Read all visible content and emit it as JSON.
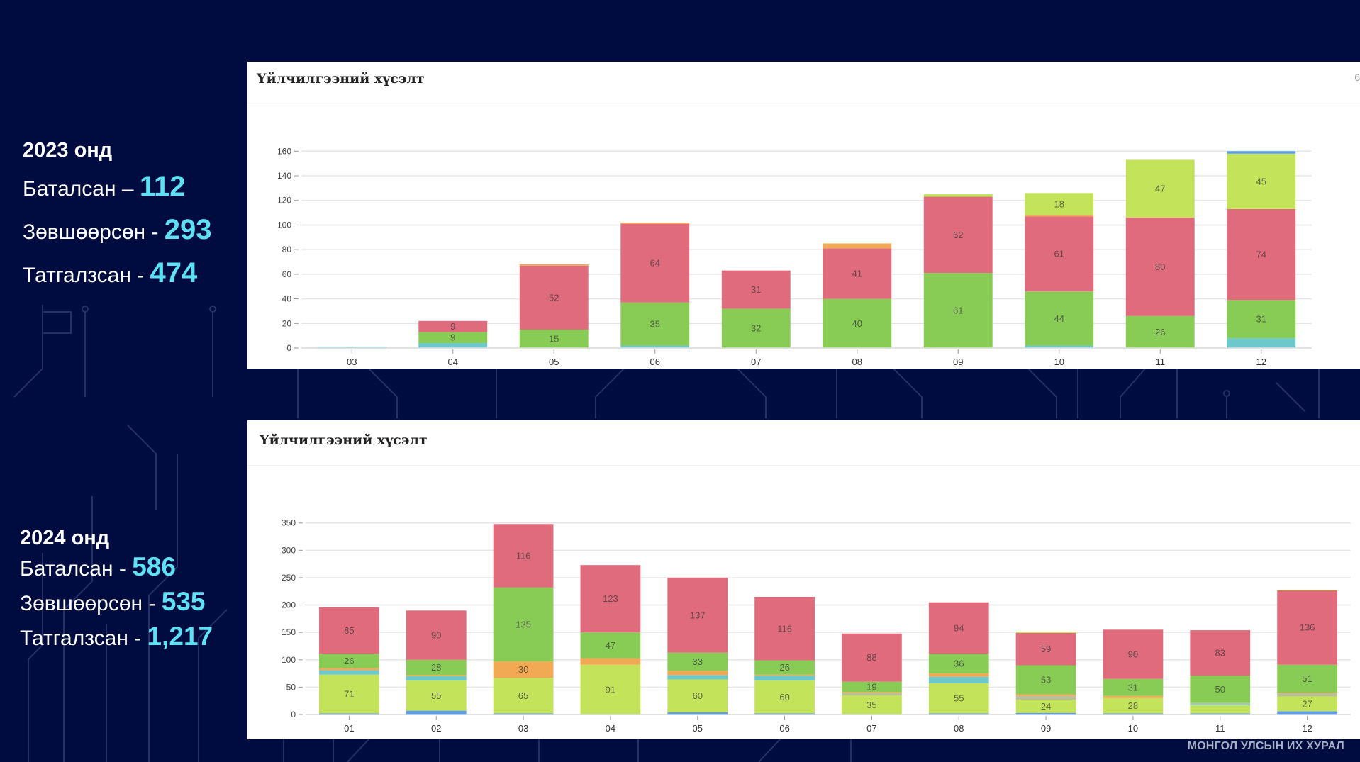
{
  "stats": {
    "y2023": {
      "year_label": "2023 онд",
      "rows": [
        {
          "label": "Баталсан – ",
          "value": "112"
        },
        {
          "label": "Зөвшөөрсөн - ",
          "value": "293"
        },
        {
          "label": "Татгалзсан - ",
          "value": "474"
        }
      ]
    },
    "y2024": {
      "year_label": "2024 онд",
      "rows": [
        {
          "label": "Баталсан - ",
          "value": "586"
        },
        {
          "label": "Зөвшөөрсөн - ",
          "value": "535"
        },
        {
          "label": "Татгалзсан - ",
          "value": "1,217"
        }
      ]
    }
  },
  "footer": {
    "brand": "МОНГОЛ УЛСЫН ИХ ХУРАЛ"
  },
  "colors": {
    "background": "#000c3f",
    "accent_number": "#5ee0f5",
    "grid": "#e6e6e6"
  },
  "chart_data": [
    {
      "type": "bar",
      "stacked": true,
      "title": "Үйлчилгээний хүсэлт",
      "corner_label": "6",
      "xlabel": "",
      "ylabel": "",
      "categories": [
        "03",
        "04",
        "05",
        "06",
        "07",
        "08",
        "09",
        "10",
        "11",
        "12"
      ],
      "ylim": [
        0,
        160
      ],
      "yticks": [
        0,
        20,
        40,
        60,
        80,
        100,
        120,
        140,
        160
      ],
      "grid": true,
      "legend": "none",
      "series": [
        {
          "name": "cyan",
          "color": "#6cc8cb",
          "values": [
            1,
            4,
            0,
            2,
            0,
            0,
            0,
            2,
            0,
            8
          ],
          "labels": [
            false,
            false,
            false,
            false,
            false,
            false,
            false,
            false,
            false,
            false
          ]
        },
        {
          "name": "green",
          "color": "#88cc55",
          "values": [
            0,
            9,
            15,
            35,
            32,
            40,
            61,
            44,
            26,
            31
          ],
          "labels": [
            false,
            true,
            true,
            true,
            true,
            true,
            true,
            true,
            true,
            true
          ]
        },
        {
          "name": "red",
          "color": "#e06b7c",
          "values": [
            0,
            9,
            52,
            64,
            31,
            41,
            62,
            61,
            80,
            74
          ],
          "labels": [
            false,
            true,
            true,
            true,
            true,
            true,
            true,
            true,
            true,
            true
          ]
        },
        {
          "name": "orange",
          "color": "#f1a954",
          "values": [
            0,
            0,
            1,
            1,
            0,
            4,
            0,
            1,
            0,
            0
          ],
          "labels": [
            false,
            false,
            false,
            false,
            false,
            false,
            false,
            false,
            false,
            false
          ]
        },
        {
          "name": "lime",
          "color": "#c3e45a",
          "values": [
            0,
            0,
            0,
            0,
            0,
            0,
            2,
            18,
            47,
            45
          ],
          "labels": [
            false,
            false,
            false,
            false,
            false,
            false,
            false,
            true,
            true,
            true
          ]
        },
        {
          "name": "blue",
          "color": "#5b9ef0",
          "values": [
            0,
            0,
            0,
            0,
            0,
            0,
            0,
            0,
            0,
            2
          ],
          "labels": [
            false,
            false,
            false,
            false,
            false,
            false,
            false,
            false,
            false,
            false
          ]
        }
      ]
    },
    {
      "type": "bar",
      "stacked": true,
      "title": "Үйлчилгээний хүсэлт",
      "xlabel": "",
      "ylabel": "",
      "categories": [
        "01",
        "02",
        "03",
        "04",
        "05",
        "06",
        "07",
        "08",
        "09",
        "10",
        "11",
        "12"
      ],
      "ylim": [
        0,
        360
      ],
      "yticks": [
        0,
        50,
        100,
        150,
        200,
        250,
        300,
        350
      ],
      "grid": true,
      "legend": "none",
      "series": [
        {
          "name": "blue",
          "color": "#5b9ef0",
          "values": [
            2,
            7,
            2,
            0,
            4,
            2,
            0,
            2,
            3,
            2,
            2,
            6
          ],
          "labels": [
            false,
            false,
            false,
            false,
            false,
            false,
            false,
            false,
            false,
            false,
            false,
            false
          ]
        },
        {
          "name": "lime",
          "color": "#c3e45a",
          "values": [
            71,
            55,
            65,
            91,
            60,
            60,
            35,
            55,
            24,
            28,
            15,
            27
          ],
          "labels": [
            true,
            true,
            true,
            true,
            true,
            true,
            true,
            true,
            true,
            true,
            false,
            true
          ]
        },
        {
          "name": "cyan",
          "color": "#6cc8cb",
          "values": [
            8,
            8,
            0,
            0,
            8,
            9,
            0,
            12,
            0,
            0,
            2,
            0
          ],
          "labels": [
            false,
            false,
            false,
            false,
            false,
            false,
            false,
            false,
            false,
            false,
            false,
            false
          ]
        },
        {
          "name": "gray",
          "color": "#b9bf9a",
          "values": [
            0,
            0,
            0,
            0,
            0,
            0,
            4,
            0,
            7,
            0,
            2,
            6
          ],
          "labels": [
            false,
            false,
            false,
            false,
            false,
            false,
            false,
            false,
            false,
            false,
            false,
            false
          ]
        },
        {
          "name": "orange",
          "color": "#f1a954",
          "values": [
            4,
            2,
            30,
            12,
            8,
            2,
            2,
            6,
            3,
            4,
            0,
            1
          ],
          "labels": [
            false,
            false,
            true,
            false,
            false,
            false,
            false,
            false,
            false,
            false,
            false,
            false
          ]
        },
        {
          "name": "green",
          "color": "#88cc55",
          "values": [
            26,
            28,
            135,
            47,
            33,
            26,
            19,
            36,
            53,
            31,
            50,
            51
          ],
          "labels": [
            true,
            true,
            true,
            true,
            true,
            true,
            true,
            true,
            true,
            true,
            true,
            true
          ]
        },
        {
          "name": "red",
          "color": "#e06b7c",
          "values": [
            85,
            90,
            116,
            123,
            137,
            116,
            88,
            94,
            59,
            90,
            83,
            136
          ],
          "labels": [
            true,
            true,
            true,
            true,
            true,
            true,
            true,
            true,
            true,
            true,
            true,
            true
          ]
        },
        {
          "name": "extra",
          "color": "#c3e45a",
          "values": [
            0,
            0,
            0,
            0,
            0,
            0,
            0,
            0,
            2,
            0,
            0,
            1
          ],
          "labels": [
            false,
            false,
            false,
            false,
            false,
            false,
            false,
            false,
            false,
            false,
            false,
            false
          ]
        }
      ]
    }
  ]
}
